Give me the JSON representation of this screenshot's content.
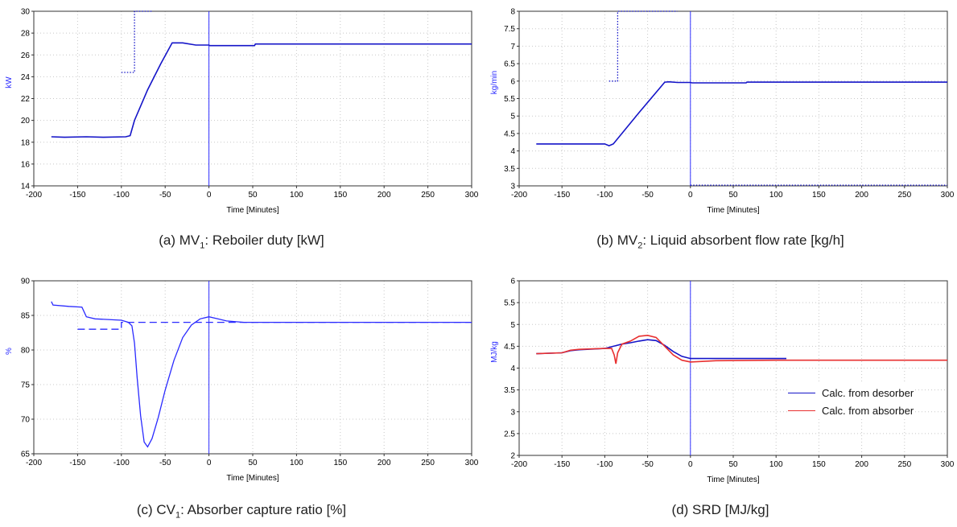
{
  "chart_data": [
    {
      "type": "line",
      "panel": "a",
      "caption": {
        "prefix": "(a) MV",
        "sub": "1",
        "suffix": ": Reboiler duty [kW]"
      },
      "xlabel": "Time [Minutes]",
      "ylabel": "kW",
      "xlim": [
        -200,
        300
      ],
      "ylim": [
        14,
        30
      ],
      "xticks": [
        -200,
        -150,
        -100,
        -50,
        0,
        50,
        100,
        150,
        200,
        250,
        300
      ],
      "yticks": [
        14,
        16,
        18,
        20,
        22,
        24,
        26,
        28,
        30
      ],
      "vline": 0,
      "grid": true,
      "series": [
        {
          "style": "solid",
          "color": "#1414c8",
          "x": [
            -180,
            -165,
            -140,
            -120,
            -95,
            -90,
            -85,
            -70,
            -55,
            -42,
            -30,
            -15,
            0,
            1,
            52,
            53,
            100,
            200,
            300
          ],
          "y": [
            18.5,
            18.45,
            18.5,
            18.45,
            18.5,
            18.6,
            20.0,
            22.8,
            25.2,
            27.1,
            27.1,
            26.9,
            26.9,
            26.85,
            26.85,
            27.0,
            27.0,
            27.0,
            27.0
          ]
        },
        {
          "style": "dotted",
          "color": "#1414c8",
          "x": [
            -100,
            -90,
            -90,
            -85,
            -85,
            -65
          ],
          "y": [
            24.4,
            24.4,
            24.4,
            24.4,
            30,
            30
          ]
        }
      ]
    },
    {
      "type": "line",
      "panel": "b",
      "caption": {
        "prefix": "(b) MV",
        "sub": "2",
        "suffix": ": Liquid absorbent flow rate [kg/h]"
      },
      "xlabel": "Time [Minutes]",
      "ylabel": "kg/min",
      "xlim": [
        -200,
        300
      ],
      "ylim": [
        3,
        8
      ],
      "xticks": [
        -200,
        -150,
        -100,
        -50,
        0,
        50,
        100,
        150,
        200,
        250,
        300
      ],
      "yticks": [
        3,
        3.5,
        4,
        4.5,
        5,
        5.5,
        6,
        6.5,
        7,
        7.5,
        8
      ],
      "vline": 0,
      "grid": true,
      "series": [
        {
          "style": "solid",
          "color": "#1414c8",
          "x": [
            -180,
            -100,
            -95,
            -90,
            -60,
            -30,
            -25,
            -15,
            0,
            2,
            65,
            66,
            150,
            300
          ],
          "y": [
            4.2,
            4.2,
            4.15,
            4.2,
            5.1,
            5.97,
            5.98,
            5.96,
            5.96,
            5.95,
            5.95,
            5.97,
            5.97,
            5.97
          ]
        },
        {
          "style": "dotted",
          "color": "#1414c8",
          "x": [
            -95,
            -85,
            -85,
            -15
          ],
          "y": [
            6.0,
            6.0,
            8.0,
            8.0
          ]
        },
        {
          "style": "dotted",
          "color": "#1414c8",
          "x": [
            0,
            300
          ],
          "y": [
            3.02,
            3.02
          ]
        }
      ]
    },
    {
      "type": "line",
      "panel": "c",
      "caption": {
        "prefix": "(c) CV",
        "sub": "1",
        "suffix": ": Absorber capture ratio [%]"
      },
      "xlabel": "Time [Minutes]",
      "ylabel": "%",
      "xlim": [
        -200,
        300
      ],
      "ylim": [
        65,
        90
      ],
      "xticks": [
        -200,
        -150,
        -100,
        -50,
        0,
        50,
        100,
        150,
        200,
        250,
        300
      ],
      "yticks": [
        65,
        70,
        75,
        80,
        85,
        90
      ],
      "vline": 0,
      "grid": true,
      "series": [
        {
          "style": "solid",
          "color": "#2a2aff",
          "x": [
            -180,
            -178,
            -160,
            -145,
            -140,
            -130,
            -100,
            -92,
            -88,
            -85,
            -82,
            -78,
            -74,
            -70,
            -65,
            -58,
            -50,
            -40,
            -30,
            -20,
            -10,
            0,
            10,
            20,
            40,
            60,
            100,
            200,
            300
          ],
          "y": [
            87,
            86.5,
            86.3,
            86.2,
            84.8,
            84.5,
            84.3,
            84.0,
            83.5,
            81,
            76,
            70.5,
            66.7,
            66.0,
            67.2,
            70.2,
            74.2,
            78.5,
            81.8,
            83.6,
            84.5,
            84.8,
            84.5,
            84.2,
            84.0,
            84.0,
            84.0,
            84.0,
            84.0
          ]
        },
        {
          "style": "dashed",
          "color": "#2a2aff",
          "x": [
            -150,
            -100,
            -100,
            300
          ],
          "y": [
            83,
            83,
            84,
            84
          ]
        }
      ]
    },
    {
      "type": "line",
      "panel": "d",
      "caption": {
        "prefix": "(d) SRD [MJ/kg]",
        "sub": "",
        "suffix": ""
      },
      "xlabel": "Time [Minutes]",
      "ylabel": "MJ/kg",
      "xlim": [
        -200,
        300
      ],
      "ylim": [
        2,
        6
      ],
      "xticks": [
        -200,
        -150,
        -100,
        -50,
        0,
        50,
        100,
        150,
        200,
        250,
        300
      ],
      "yticks": [
        2,
        2.5,
        3,
        3.5,
        4,
        4.5,
        5,
        5.5,
        6
      ],
      "vline": 0,
      "grid": true,
      "legend_position": "right",
      "series": [
        {
          "name": "Calc. from desorber",
          "style": "solid",
          "color": "#1414c8",
          "x": [
            -180,
            -150,
            -140,
            -130,
            -100,
            -90,
            -80,
            -70,
            -60,
            -50,
            -40,
            -30,
            -20,
            -10,
            0,
            50,
            112
          ],
          "y": [
            4.33,
            4.35,
            4.4,
            4.42,
            4.45,
            4.5,
            4.55,
            4.58,
            4.62,
            4.65,
            4.63,
            4.52,
            4.38,
            4.27,
            4.22,
            4.22,
            4.22
          ]
        },
        {
          "name": "Calc. from absorber",
          "style": "solid",
          "color": "#e83030",
          "x": [
            -180,
            -150,
            -140,
            -130,
            -100,
            -92,
            -89,
            -87,
            -85,
            -80,
            -70,
            -60,
            -50,
            -40,
            -30,
            -20,
            -10,
            0,
            30,
            100,
            300
          ],
          "y": [
            4.33,
            4.35,
            4.41,
            4.43,
            4.45,
            4.45,
            4.3,
            4.1,
            4.35,
            4.55,
            4.62,
            4.73,
            4.75,
            4.7,
            4.5,
            4.3,
            4.18,
            4.14,
            4.17,
            4.18,
            4.18
          ]
        }
      ]
    }
  ]
}
